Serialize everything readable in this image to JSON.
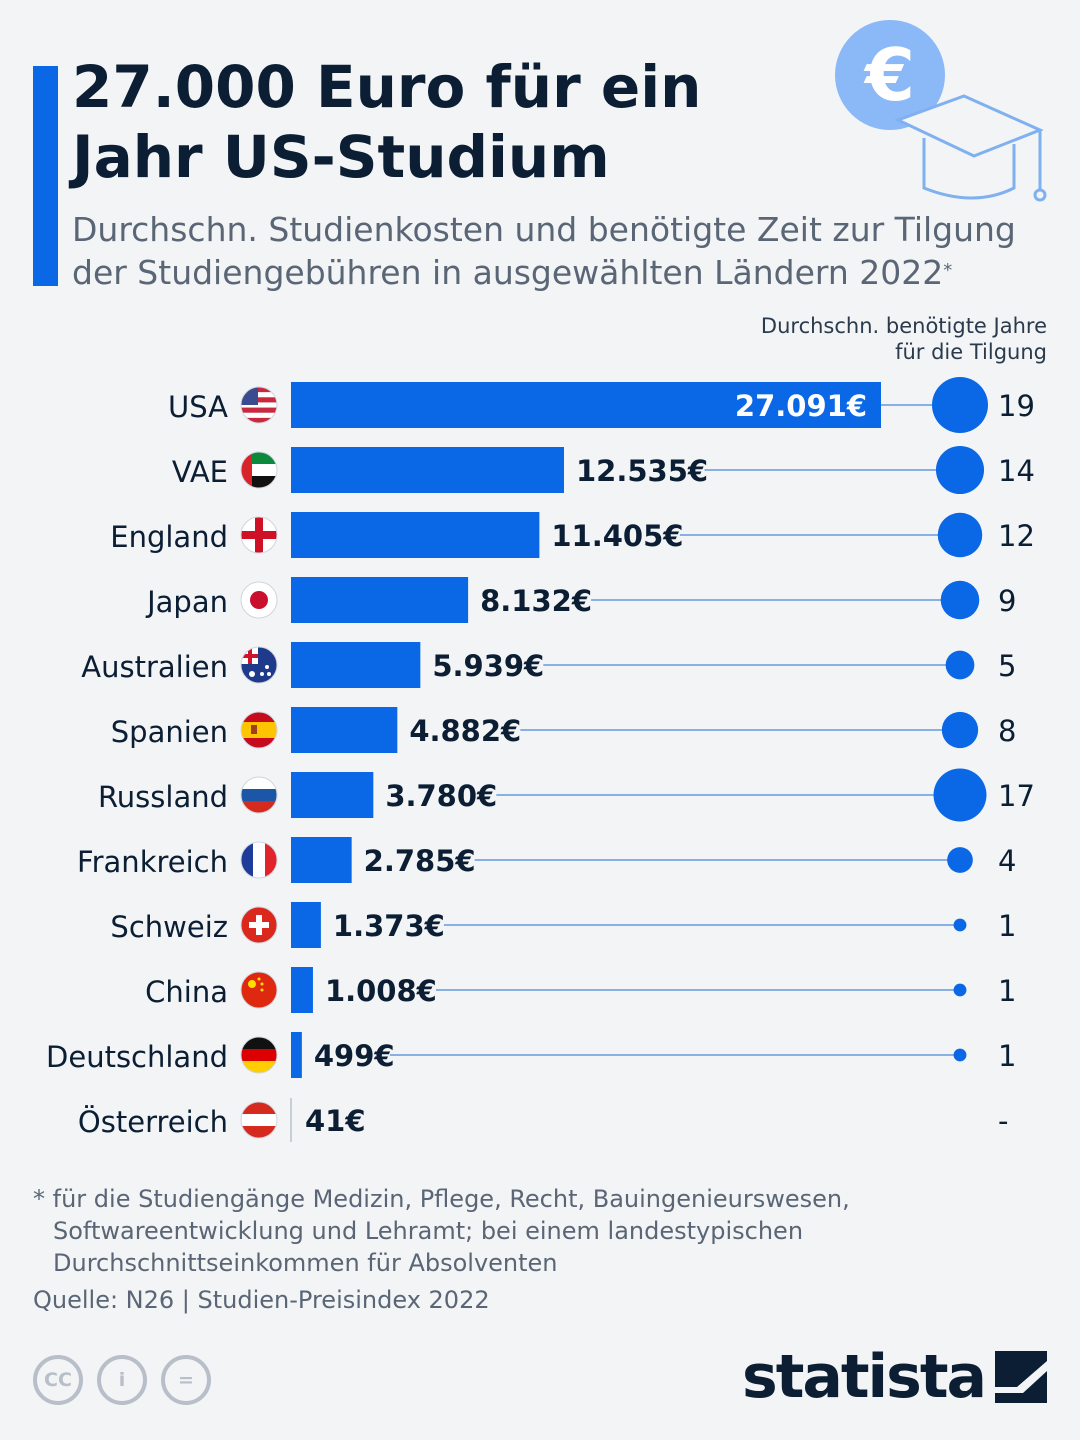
{
  "title": "27.000 Euro für ein Jahr US-Studium",
  "subtitle": "Durchschn. Studienkosten und benötigte Zeit zur Tilgung der Studiengebühren in ausgewählten Ländern 2022",
  "subtitle_marker": "*",
  "column_header": "Durchschn. benötigte Jahre für die Tilgung",
  "deco_icon": "euro-graduation-icon",
  "colors": {
    "accent": "#0a68e6",
    "text": "#0b1e33",
    "muted": "#5a6675",
    "background": "#f2f4f6"
  },
  "chart_data": {
    "type": "bar",
    "orientation": "horizontal",
    "title": "27.000 Euro für ein Jahr US-Studium",
    "categories": [
      "USA",
      "VAE",
      "England",
      "Japan",
      "Australien",
      "Spanien",
      "Russland",
      "Frankreich",
      "Schweiz",
      "China",
      "Deutschland",
      "Österreich"
    ],
    "series": [
      {
        "name": "Durchschn. Studienkosten (€)",
        "values": [
          27091,
          12535,
          11405,
          8132,
          5939,
          4882,
          3780,
          2785,
          1373,
          1008,
          499,
          41
        ]
      },
      {
        "name": "Durchschn. benötigte Jahre für die Tilgung",
        "values": [
          19,
          14,
          12,
          9,
          5,
          8,
          17,
          4,
          1,
          1,
          1,
          null
        ]
      }
    ],
    "value_labels": [
      "27.091€",
      "12.535€",
      "11.405€",
      "8.132€",
      "5.939€",
      "4.882€",
      "3.780€",
      "2.785€",
      "1.373€",
      "1.008€",
      "499€",
      "41€"
    ],
    "years_labels": [
      "19",
      "14",
      "12",
      "9",
      "5",
      "8",
      "17",
      "4",
      "1",
      "1",
      "1",
      "-"
    ],
    "flags": [
      "usa-flag-icon",
      "uae-flag-icon",
      "england-flag-icon",
      "japan-flag-icon",
      "australia-flag-icon",
      "spain-flag-icon",
      "russia-flag-icon",
      "france-flag-icon",
      "switzerland-flag-icon",
      "china-flag-icon",
      "germany-flag-icon",
      "austria-flag-icon"
    ],
    "xlim": [
      0,
      27091
    ]
  },
  "footnote": {
    "line1": "* für die Studiengänge Medizin, Pflege, Recht, Bauingenieurswesen,",
    "line2": "Softwareentwicklung und Lehramt; bei einem landestypischen",
    "line3": "Durchschnittseinkommen für Absolventen"
  },
  "source": "Quelle: N26 | Studien-Preisindex 2022",
  "license_icons": [
    {
      "icon": "creative-commons-icon",
      "label": "CC"
    },
    {
      "icon": "attribution-icon",
      "label": "i"
    },
    {
      "icon": "no-derivatives-icon",
      "label": "="
    }
  ],
  "brand": "statista"
}
